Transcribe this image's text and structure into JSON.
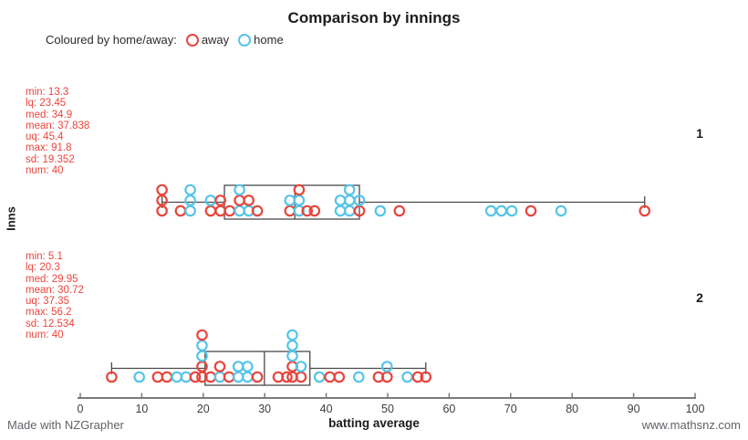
{
  "title": "Comparison by innings",
  "footer_left": "Made with NZGrapher",
  "footer_right": "www.mathsnz.com",
  "chart_data": {
    "type": "boxplot-dotplot",
    "title": "Comparison by innings",
    "xlabel": "batting average",
    "ylabel": "Inns",
    "xlim": [
      0,
      100
    ],
    "xticks": [
      0,
      10,
      20,
      30,
      40,
      50,
      60,
      70,
      80,
      90,
      100
    ],
    "grid": false,
    "legend": {
      "label": "Coloured by home/away:",
      "position": "top-left",
      "series": [
        {
          "name": "away",
          "color": "#e8453c"
        },
        {
          "name": "home",
          "color": "#55c4e9"
        }
      ]
    },
    "stats_color": "#ee443b",
    "groups": [
      {
        "label": "1",
        "stats": {
          "min": "13.3",
          "lq": "23.45",
          "med": "34.9",
          "mean": "37.838",
          "uq": "45.4",
          "max": "91.8",
          "sd": "19.352",
          "num": "40"
        },
        "points": [
          {
            "v": 13.3,
            "stack": [
              "away",
              "away",
              "away"
            ]
          },
          {
            "v": 16.3,
            "stack": [
              "away"
            ]
          },
          {
            "v": 17.9,
            "stack": [
              "home",
              "home",
              "home"
            ]
          },
          {
            "v": 21.2,
            "stack": [
              "away",
              "home"
            ]
          },
          {
            "v": 22.8,
            "stack": [
              "away",
              "away"
            ]
          },
          {
            "v": 24.3,
            "stack": [
              "away"
            ]
          },
          {
            "v": 25.9,
            "stack": [
              "home",
              "away",
              "home"
            ]
          },
          {
            "v": 27.4,
            "stack": [
              "home",
              "away"
            ]
          },
          {
            "v": 28.8,
            "stack": [
              "away"
            ]
          },
          {
            "v": 34.1,
            "stack": [
              "away",
              "home"
            ]
          },
          {
            "v": 35.6,
            "stack": [
              "home",
              "home",
              "away"
            ]
          },
          {
            "v": 36.9,
            "stack": [
              "away"
            ]
          },
          {
            "v": 38.1,
            "stack": [
              "away"
            ]
          },
          {
            "v": 42.3,
            "stack": [
              "home",
              "home"
            ]
          },
          {
            "v": 43.8,
            "stack": [
              "home",
              "home",
              "home"
            ]
          },
          {
            "v": 45.4,
            "stack": [
              "away",
              "home"
            ]
          },
          {
            "v": 48.8,
            "stack": [
              "home"
            ]
          },
          {
            "v": 51.9,
            "stack": [
              "away"
            ]
          },
          {
            "v": 66.8,
            "stack": [
              "home"
            ]
          },
          {
            "v": 68.5,
            "stack": [
              "home"
            ]
          },
          {
            "v": 70.2,
            "stack": [
              "home"
            ]
          },
          {
            "v": 73.3,
            "stack": [
              "away"
            ]
          },
          {
            "v": 78.2,
            "stack": [
              "home"
            ]
          },
          {
            "v": 91.8,
            "stack": [
              "away"
            ]
          }
        ]
      },
      {
        "label": "2",
        "stats": {
          "min": "5.1",
          "lq": "20.3",
          "med": "29.95",
          "mean": "30.72",
          "uq": "37.35",
          "max": "56.2",
          "sd": "12.534",
          "num": "40"
        },
        "points": [
          {
            "v": 5.1,
            "stack": [
              "away"
            ]
          },
          {
            "v": 9.6,
            "stack": [
              "home"
            ]
          },
          {
            "v": 12.6,
            "stack": [
              "away"
            ]
          },
          {
            "v": 14.1,
            "stack": [
              "away"
            ]
          },
          {
            "v": 15.7,
            "stack": [
              "home"
            ]
          },
          {
            "v": 17.2,
            "stack": [
              "home"
            ]
          },
          {
            "v": 18.7,
            "stack": [
              "away"
            ]
          },
          {
            "v": 19.8,
            "stack": [
              "away",
              "away",
              "home",
              "home",
              "away"
            ]
          },
          {
            "v": 21.2,
            "stack": [
              "away"
            ]
          },
          {
            "v": 22.7,
            "stack": [
              "home",
              "away"
            ]
          },
          {
            "v": 24.2,
            "stack": [
              "away"
            ]
          },
          {
            "v": 25.7,
            "stack": [
              "home",
              "home"
            ]
          },
          {
            "v": 27.2,
            "stack": [
              "home",
              "home"
            ]
          },
          {
            "v": 28.8,
            "stack": [
              "away"
            ]
          },
          {
            "v": 32.2,
            "stack": [
              "away"
            ]
          },
          {
            "v": 33.6,
            "stack": [
              "away"
            ]
          },
          {
            "v": 34.5,
            "stack": [
              "away",
              "away",
              "home",
              "home",
              "home"
            ]
          },
          {
            "v": 35.9,
            "stack": [
              "away",
              "home"
            ]
          },
          {
            "v": 38.9,
            "stack": [
              "home"
            ]
          },
          {
            "v": 40.6,
            "stack": [
              "away"
            ]
          },
          {
            "v": 42.1,
            "stack": [
              "away"
            ]
          },
          {
            "v": 45.3,
            "stack": [
              "home"
            ]
          },
          {
            "v": 48.5,
            "stack": [
              "away"
            ]
          },
          {
            "v": 49.9,
            "stack": [
              "away",
              "home"
            ]
          },
          {
            "v": 53.2,
            "stack": [
              "home"
            ]
          },
          {
            "v": 54.9,
            "stack": [
              "away"
            ]
          },
          {
            "v": 56.2,
            "stack": [
              "away"
            ]
          }
        ]
      }
    ]
  }
}
